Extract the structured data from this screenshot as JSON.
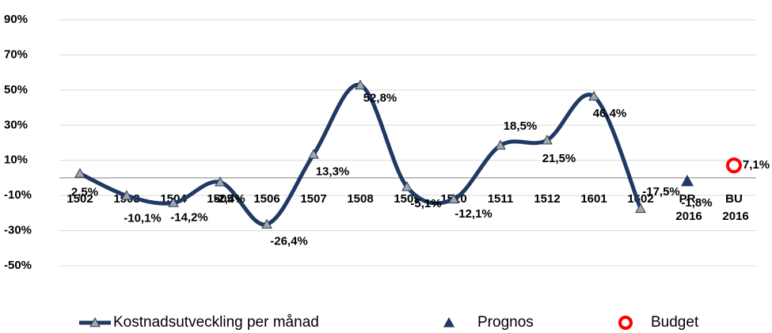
{
  "chart_data": {
    "type": "line",
    "categories": [
      "1502",
      "1503",
      "1504",
      "1505",
      "1506",
      "1507",
      "1508",
      "1509",
      "1510",
      "1511",
      "1512",
      "1601",
      "1602",
      "PR 2016",
      "BU 2016"
    ],
    "series": [
      {
        "name": "Kostnadsutveckling per månad",
        "color": "#1f3864",
        "values": [
          2.5,
          -10.1,
          -14.2,
          -2.4,
          -26.4,
          13.3,
          52.8,
          -5.1,
          -12.1,
          18.5,
          21.5,
          46.4,
          -17.5,
          null,
          null
        ],
        "value_labels": [
          "2,5%",
          "-10,1%",
          "-14,2%",
          "-2,4%",
          "-26,4%",
          "13,3%",
          "52,8%",
          "-5,1%",
          "-12,1%",
          "18,5%",
          "21,5%",
          "46,4%",
          "-17,5%",
          null,
          null
        ]
      },
      {
        "name": "Prognos",
        "color": "#1f3864",
        "values": [
          null,
          null,
          null,
          null,
          null,
          null,
          null,
          null,
          null,
          null,
          null,
          null,
          null,
          -1.8,
          null
        ],
        "value_labels": [
          null,
          null,
          null,
          null,
          null,
          null,
          null,
          null,
          null,
          null,
          null,
          null,
          null,
          "-1,8%",
          null
        ]
      },
      {
        "name": "Budget",
        "color": "#ff0000",
        "values": [
          null,
          null,
          null,
          null,
          null,
          null,
          null,
          null,
          null,
          null,
          null,
          null,
          null,
          null,
          7.1
        ],
        "value_labels": [
          null,
          null,
          null,
          null,
          null,
          null,
          null,
          null,
          null,
          null,
          null,
          null,
          null,
          null,
          "7,1%"
        ]
      }
    ],
    "ylim": [
      -50,
      90
    ],
    "yticks": [
      {
        "value": -50,
        "label": "-50%"
      },
      {
        "value": -30,
        "label": "-30%"
      },
      {
        "value": -10,
        "label": "-10%"
      },
      {
        "value": 10,
        "label": "10%"
      },
      {
        "value": 30,
        "label": "30%"
      },
      {
        "value": 50,
        "label": "50%"
      },
      {
        "value": 70,
        "label": "70%"
      },
      {
        "value": 90,
        "label": "90%"
      }
    ],
    "grid": true,
    "legend": "bottom"
  }
}
